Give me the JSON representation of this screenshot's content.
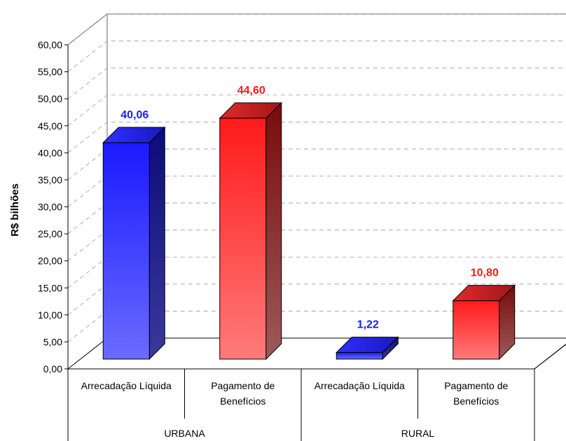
{
  "chart_data": {
    "type": "bar",
    "title": "",
    "xlabel": "",
    "ylabel": "R$ bilhões",
    "ylim": [
      0,
      60
    ],
    "ytick_step": 5,
    "ytick_labels": [
      "0,00",
      "5,00",
      "10,00",
      "15,00",
      "20,00",
      "25,00",
      "30,00",
      "35,00",
      "40,00",
      "45,00",
      "50,00",
      "55,00",
      "60,00"
    ],
    "grid": true,
    "legend": "none",
    "style": "3d-column",
    "groups": [
      {
        "label": "URBANA",
        "categories": [
          "Arrecadação Líquida",
          "Pagamento de Benefícios"
        ]
      },
      {
        "label": "RURAL",
        "categories": [
          "Arrecadação Líquida",
          "Pagamento de Benefícios"
        ]
      }
    ],
    "bars": [
      {
        "group": "URBANA",
        "category": "Arrecadação Líquida",
        "value": 40.06,
        "label": "40,06",
        "color": "#1a1aff"
      },
      {
        "group": "URBANA",
        "category": "Pagamento de Benefícios",
        "value": 44.6,
        "label": "44,60",
        "color": "#ff1a1a"
      },
      {
        "group": "RURAL",
        "category": "Arrecadação Líquida",
        "value": 1.22,
        "label": "1,22",
        "color": "#1a1aff"
      },
      {
        "group": "RURAL",
        "category": "Pagamento de Benefícios",
        "value": 10.8,
        "label": "10,80",
        "color": "#ff1a1a"
      }
    ]
  }
}
